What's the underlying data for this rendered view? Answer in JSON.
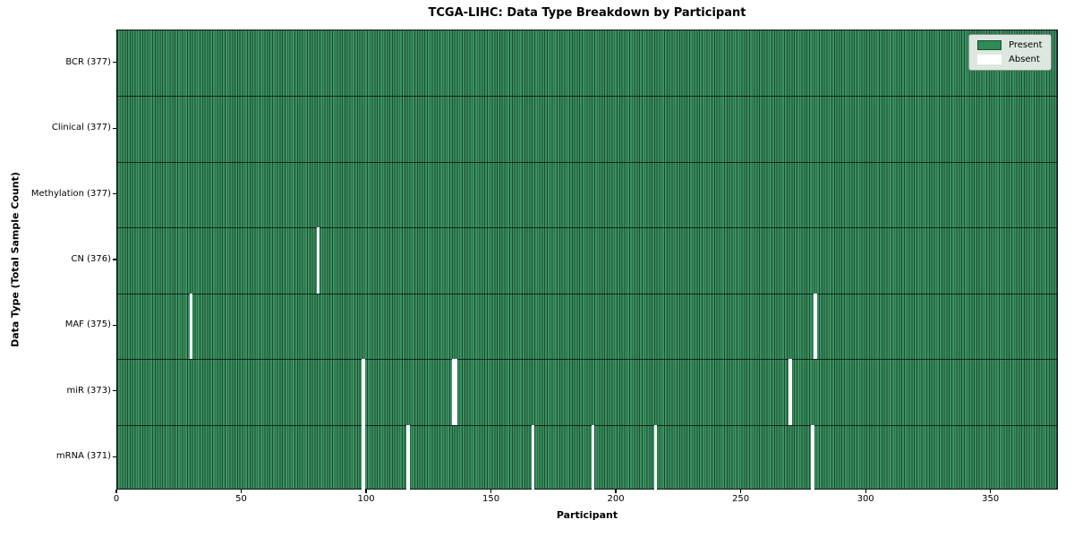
{
  "title": "TCGA-LIHC: Data Type Breakdown by Participant",
  "colors": {
    "present": "#2E8B57",
    "present_stripe_light": "#3b9163",
    "present_stripe_dark": "#1b4d2e",
    "absent": "#ffffff",
    "legend_bg": "#dce8df",
    "legend_border": "#909090"
  },
  "chart_data": {
    "type": "heatmap",
    "title": "TCGA-LIHC: Data Type Breakdown by Participant",
    "xlabel": "Participant",
    "ylabel": "Data Type (Total Sample Count)",
    "x_range": [
      0,
      377
    ],
    "n_participants": 377,
    "x_ticks": [
      0,
      50,
      100,
      150,
      200,
      250,
      300,
      350
    ],
    "grid": "row-dividers-only",
    "legend_position": "upper right",
    "rows": [
      {
        "label": "BCR (377)",
        "data_type": "BCR",
        "present_count": 377,
        "absent_participants": []
      },
      {
        "label": "Clinical (377)",
        "data_type": "Clinical",
        "present_count": 377,
        "absent_participants": []
      },
      {
        "label": "Methylation (377)",
        "data_type": "Methylation",
        "present_count": 377,
        "absent_participants": []
      },
      {
        "label": "CN (376)",
        "data_type": "CN",
        "present_count": 376,
        "absent_participants": [
          80
        ]
      },
      {
        "label": "MAF (375)",
        "data_type": "MAF",
        "present_count": 375,
        "absent_participants": [
          29,
          279
        ]
      },
      {
        "label": "miR (373)",
        "data_type": "miR",
        "present_count": 373,
        "absent_participants": [
          98,
          134,
          135,
          269
        ]
      },
      {
        "label": "mRNA (371)",
        "data_type": "mRNA",
        "present_count": 371,
        "absent_participants": [
          98,
          116,
          166,
          190,
          215,
          278
        ]
      }
    ],
    "legend": [
      {
        "label": "Present",
        "color": "#2E8B57"
      },
      {
        "label": "Absent",
        "color": "#ffffff"
      }
    ]
  }
}
